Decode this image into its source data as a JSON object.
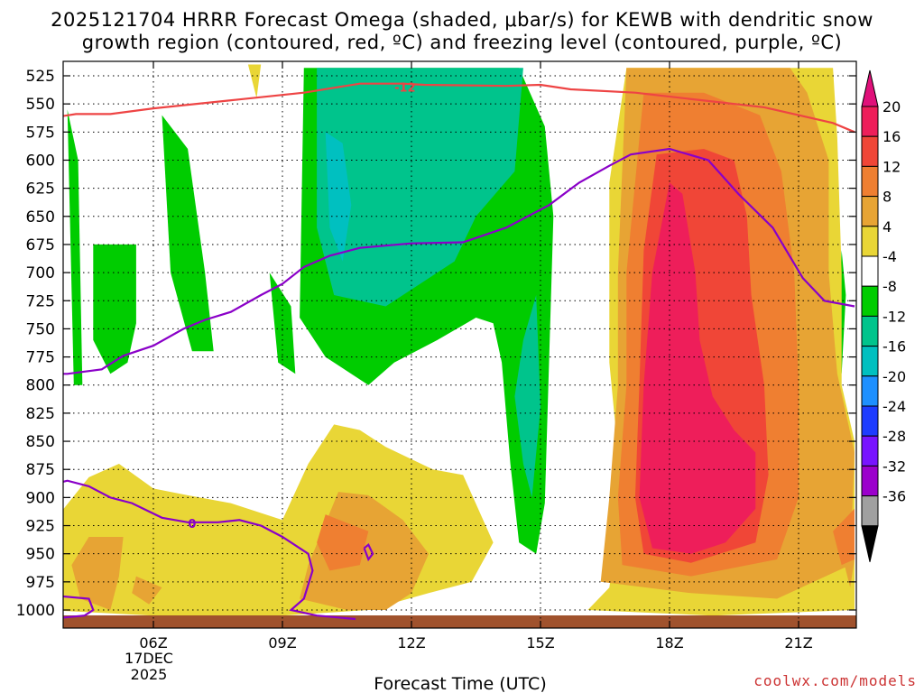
{
  "chart_data": {
    "type": "time-height contour",
    "title_line1": "2025121704 HRRR Forecast Omega (shaded, μbar/s) for KEWB with dendritic snow",
    "title_line2": "growth region (contoured, red, ºC) and freezing level (contoured, purple, ºC)",
    "xlabel": "Forecast Time (UTC)",
    "credit": "coolwx.com/models",
    "x_range_hours": [
      3,
      22.3
    ],
    "y_range_hpa": [
      515,
      1010
    ],
    "x_ticks": [
      {
        "hour": 6,
        "label": "06Z"
      },
      {
        "hour": 9,
        "label": "09Z"
      },
      {
        "hour": 12,
        "label": "12Z"
      },
      {
        "hour": 15,
        "label": "15Z"
      },
      {
        "hour": 18,
        "label": "18Z"
      },
      {
        "hour": 21,
        "label": "21Z"
      }
    ],
    "date_label_day": "17DEC",
    "date_label_year": "2025",
    "y_ticks": [
      525,
      550,
      575,
      600,
      625,
      650,
      675,
      700,
      725,
      750,
      775,
      800,
      825,
      850,
      875,
      900,
      925,
      950,
      975,
      1000
    ],
    "colorbar": {
      "labels": [
        "20",
        "16",
        "12",
        "8",
        "4",
        "-4",
        "-8",
        "-12",
        "-16",
        "-20",
        "-24",
        "-28",
        "-32",
        "-36"
      ],
      "colors": [
        "#ee1e5a",
        "#f04637",
        "#ef7f31",
        "#e7a434",
        "#e9d636",
        "#ffffff",
        "#00cc00",
        "#00c48c",
        "#00c0c0",
        "#1e90ff",
        "#1e3cff",
        "#7814ff",
        "#9b00cc",
        "#a0a0a0"
      ],
      "top_arrow_color": "#e0107a",
      "bottom_arrow_color": "#000000"
    },
    "omega_regions": [
      {
        "value_range": "-8 to -4",
        "color": "#00cc00",
        "polygons": [
          [
            [
              4.0,
              555
            ],
            [
              4.15,
              800
            ],
            [
              4.35,
              800
            ],
            [
              4.25,
              600
            ]
          ],
          [
            [
              4.6,
              675
            ],
            [
              4.6,
              760
            ],
            [
              5.0,
              790
            ],
            [
              5.4,
              780
            ],
            [
              5.6,
              745
            ],
            [
              5.6,
              675
            ]
          ],
          [
            [
              6.2,
              560
            ],
            [
              6.4,
              700
            ],
            [
              6.9,
              770
            ],
            [
              7.4,
              770
            ],
            [
              7.2,
              700
            ],
            [
              6.8,
              590
            ]
          ],
          [
            [
              8.7,
              700
            ],
            [
              8.9,
              780
            ],
            [
              9.3,
              790
            ],
            [
              9.2,
              730
            ]
          ],
          [
            [
              9.5,
              518
            ],
            [
              9.4,
              740
            ],
            [
              10.0,
              775
            ],
            [
              11.0,
              800
            ],
            [
              11.6,
              780
            ],
            [
              12.6,
              760
            ],
            [
              13.5,
              740
            ],
            [
              13.9,
              745
            ],
            [
              14.1,
              780
            ],
            [
              14.3,
              870
            ],
            [
              14.5,
              940
            ],
            [
              14.9,
              950
            ],
            [
              15.1,
              905
            ],
            [
              15.3,
              650
            ],
            [
              15.1,
              570
            ],
            [
              14.5,
              518
            ]
          ],
          [
            [
              22.0,
              680
            ],
            [
              21.9,
              760
            ],
            [
              22.0,
              790
            ],
            [
              22.1,
              720
            ]
          ]
        ]
      },
      {
        "value_range": "-12 to -8",
        "color": "#00c48c",
        "polygons": [
          [
            [
              9.8,
              518
            ],
            [
              9.8,
              660
            ],
            [
              10.2,
              720
            ],
            [
              11.4,
              730
            ],
            [
              12.2,
              710
            ],
            [
              13.0,
              690
            ],
            [
              13.5,
              650
            ],
            [
              14.4,
              610
            ],
            [
              14.6,
              518
            ]
          ],
          [
            [
              14.6,
              760
            ],
            [
              14.4,
              810
            ],
            [
              14.6,
              870
            ],
            [
              14.8,
              900
            ],
            [
              15.0,
              820
            ],
            [
              14.9,
              720
            ]
          ]
        ]
      },
      {
        "value_range": "-16 to -12",
        "color": "#00c0c0",
        "polygons": [
          [
            [
              10.0,
              575
            ],
            [
              10.1,
              660
            ],
            [
              10.4,
              690
            ],
            [
              10.6,
              640
            ],
            [
              10.4,
              585
            ]
          ]
        ]
      },
      {
        "value_range": "4 to 8",
        "color": "#e9d636",
        "polygons": [
          [
            [
              3.6,
              925
            ],
            [
              3.5,
              1000
            ],
            [
              6.0,
              1005
            ],
            [
              9.0,
              1005
            ],
            [
              11.0,
              1000
            ],
            [
              12.4,
              985
            ],
            [
              13.4,
              975
            ],
            [
              13.9,
              940
            ],
            [
              13.2,
              880
            ],
            [
              12.5,
              875
            ],
            [
              11.4,
              855
            ],
            [
              10.8,
              840
            ],
            [
              10.2,
              835
            ],
            [
              9.6,
              870
            ],
            [
              9.0,
              920
            ],
            [
              7.8,
              905
            ],
            [
              6.8,
              898
            ],
            [
              6.0,
              892
            ],
            [
              5.2,
              870
            ],
            [
              4.5,
              882
            ]
          ],
          [
            [
              16.1,
              1000
            ],
            [
              16.6,
              980
            ],
            [
              16.9,
              900
            ],
            [
              16.6,
              780
            ],
            [
              16.6,
              700
            ],
            [
              16.6,
              620
            ],
            [
              17.0,
              518
            ],
            [
              21.8,
              518
            ],
            [
              21.9,
              580
            ],
            [
              22.0,
              700
            ],
            [
              22.0,
              800
            ],
            [
              22.3,
              850
            ],
            [
              22.3,
              1000
            ],
            [
              19.0,
              1005
            ]
          ],
          [
            [
              8.2,
              515
            ],
            [
              8.4,
              545
            ],
            [
              8.5,
              515
            ]
          ]
        ]
      },
      {
        "value_range": "8 to 12",
        "color": "#e7a434",
        "polygons": [
          [
            [
              4.5,
              935
            ],
            [
              4.1,
              960
            ],
            [
              4.3,
              990
            ],
            [
              5.0,
              1000
            ],
            [
              5.2,
              970
            ],
            [
              5.3,
              935
            ]
          ],
          [
            [
              5.6,
              970
            ],
            [
              5.5,
              985
            ],
            [
              5.9,
              995
            ],
            [
              6.2,
              980
            ]
          ],
          [
            [
              9.6,
              960
            ],
            [
              9.4,
              990
            ],
            [
              10.5,
              1000
            ],
            [
              11.4,
              1000
            ],
            [
              12.0,
              985
            ],
            [
              12.4,
              950
            ],
            [
              11.8,
              920
            ],
            [
              11.0,
              898
            ],
            [
              10.3,
              895
            ]
          ],
          [
            [
              17.0,
              518
            ],
            [
              16.8,
              700
            ],
            [
              16.8,
              800
            ],
            [
              16.6,
              900
            ],
            [
              16.4,
              975
            ],
            [
              18.5,
              985
            ],
            [
              20.5,
              990
            ],
            [
              22.2,
              960
            ],
            [
              22.3,
              860
            ],
            [
              21.9,
              790
            ],
            [
              21.7,
              700
            ],
            [
              21.7,
              600
            ],
            [
              21.2,
              540
            ],
            [
              20.8,
              518
            ]
          ],
          [
            [
              22.2,
              930
            ],
            [
              22.0,
              950
            ],
            [
              22.2,
              980
            ],
            [
              22.3,
              955
            ]
          ]
        ]
      },
      {
        "value_range": "12 to 16",
        "color": "#ef7f31",
        "polygons": [
          [
            [
              17.4,
              540
            ],
            [
              17.0,
              700
            ],
            [
              17.0,
              800
            ],
            [
              16.8,
              900
            ],
            [
              16.9,
              960
            ],
            [
              18.5,
              970
            ],
            [
              20.5,
              955
            ],
            [
              21.0,
              900
            ],
            [
              21.0,
              800
            ],
            [
              20.9,
              700
            ],
            [
              20.6,
              610
            ],
            [
              20.1,
              560
            ],
            [
              18.8,
              540
            ]
          ],
          [
            [
              10.0,
              915
            ],
            [
              9.8,
              940
            ],
            [
              10.1,
              965
            ],
            [
              10.8,
              960
            ],
            [
              11.0,
              930
            ]
          ],
          [
            [
              22.3,
              910
            ],
            [
              21.8,
              930
            ],
            [
              22.0,
              960
            ],
            [
              22.3,
              955
            ]
          ]
        ]
      },
      {
        "value_range": "16 to 20",
        "color": "#f04637",
        "polygons": [
          [
            [
              17.7,
              595
            ],
            [
              17.4,
              680
            ],
            [
              17.3,
              800
            ],
            [
              17.2,
              900
            ],
            [
              17.4,
              950
            ],
            [
              18.5,
              958
            ],
            [
              20.0,
              940
            ],
            [
              20.3,
              880
            ],
            [
              20.2,
              800
            ],
            [
              19.9,
              720
            ],
            [
              19.8,
              650
            ],
            [
              19.5,
              600
            ],
            [
              18.8,
              590
            ]
          ]
        ]
      },
      {
        "value_range": "20+",
        "color": "#ee1e5a",
        "polygons": [
          [
            [
              18.0,
              620
            ],
            [
              17.6,
              700
            ],
            [
              17.4,
              800
            ],
            [
              17.3,
              900
            ],
            [
              17.6,
              945
            ],
            [
              18.5,
              950
            ],
            [
              19.3,
              940
            ],
            [
              20.0,
              910
            ],
            [
              20.0,
              860
            ],
            [
              19.5,
              840
            ],
            [
              19.0,
              810
            ],
            [
              18.7,
              760
            ],
            [
              18.6,
              700
            ],
            [
              18.3,
              630
            ]
          ]
        ]
      }
    ],
    "ground": {
      "color": "#a0522d",
      "top_hpa": 1000
    },
    "dgz_contour": {
      "color": "#ee4444",
      "label": "-12",
      "label_point": [
        11.85,
        535
      ],
      "points": [
        [
          3,
          566
        ],
        [
          4.2,
          559
        ],
        [
          5.0,
          559
        ],
        [
          6.0,
          554
        ],
        [
          8.0,
          546
        ],
        [
          9.5,
          540
        ],
        [
          10.8,
          532
        ],
        [
          11.8,
          532
        ],
        [
          12.3,
          533
        ],
        [
          14.2,
          534
        ],
        [
          15.0,
          533
        ],
        [
          15.7,
          537
        ],
        [
          17.2,
          540
        ],
        [
          18.8,
          547
        ],
        [
          20.2,
          553
        ],
        [
          21.0,
          560
        ],
        [
          21.8,
          567
        ],
        [
          22.3,
          575
        ]
      ]
    },
    "freezing_contour_upper": {
      "color": "#8a00c8",
      "points": [
        [
          3,
          785
        ],
        [
          3.5,
          790
        ],
        [
          4.0,
          790
        ],
        [
          4.8,
          786
        ],
        [
          5.3,
          774
        ],
        [
          6.0,
          765
        ],
        [
          6.7,
          750
        ],
        [
          7.2,
          742
        ],
        [
          7.8,
          735
        ],
        [
          8.5,
          720
        ],
        [
          9.0,
          710
        ],
        [
          9.5,
          695
        ],
        [
          10.1,
          685
        ],
        [
          10.8,
          678
        ],
        [
          12.0,
          674
        ],
        [
          13.2,
          673
        ],
        [
          14.2,
          660
        ],
        [
          15.2,
          640
        ],
        [
          15.9,
          620
        ],
        [
          16.6,
          605
        ],
        [
          17.1,
          595
        ],
        [
          18.0,
          590
        ],
        [
          18.9,
          600
        ],
        [
          19.6,
          630
        ],
        [
          20.4,
          660
        ],
        [
          21.1,
          705
        ],
        [
          21.6,
          725
        ],
        [
          22.3,
          730
        ]
      ]
    },
    "freezing_contour_lower": {
      "color": "#8a00c8",
      "label": "0",
      "label_point": [
        6.9,
        923
      ],
      "segments": [
        [
          [
            3,
            900
          ],
          [
            3.5,
            890
          ],
          [
            4.0,
            885
          ],
          [
            4.5,
            890
          ],
          [
            5.0,
            900
          ],
          [
            5.5,
            905
          ],
          [
            6.2,
            918
          ],
          [
            6.8,
            922
          ],
          [
            7.5,
            922
          ],
          [
            8.0,
            920
          ],
          [
            8.5,
            925
          ],
          [
            9.0,
            935
          ],
          [
            9.6,
            950
          ],
          [
            9.7,
            965
          ],
          [
            9.5,
            990
          ],
          [
            9.2,
            1000
          ],
          [
            9.8,
            1005
          ],
          [
            10.7,
            1008
          ]
        ],
        [
          [
            3,
            985
          ],
          [
            3.9,
            988
          ],
          [
            4.5,
            990
          ],
          [
            4.6,
            1000
          ],
          [
            4.4,
            1005
          ],
          [
            3,
            1010
          ]
        ],
        [
          [
            10.9,
            945
          ],
          [
            11.0,
            955
          ],
          [
            11.1,
            950
          ],
          [
            11.0,
            942
          ],
          [
            10.9,
            945
          ]
        ]
      ]
    }
  }
}
